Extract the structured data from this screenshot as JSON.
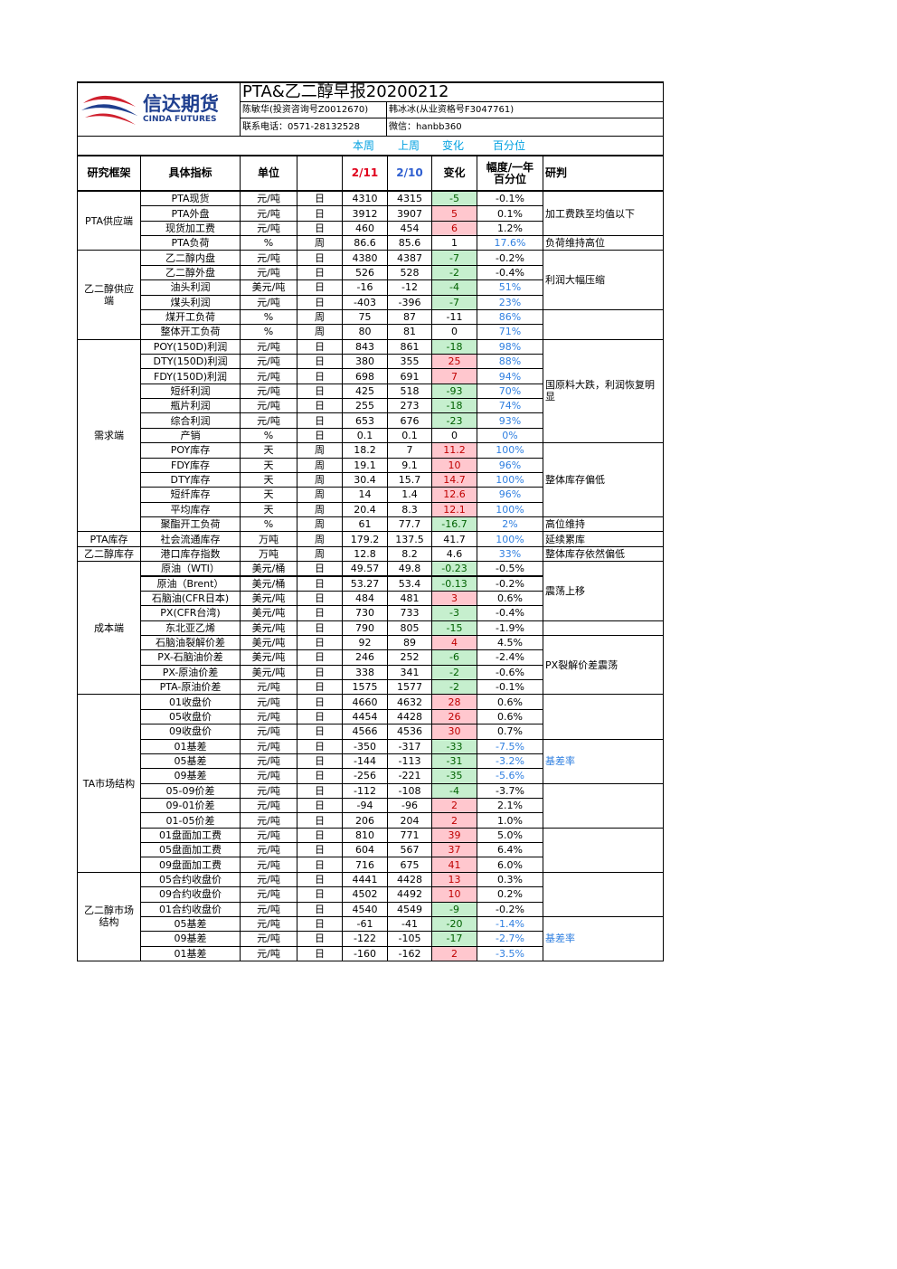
{
  "header": {
    "logo_cn": "信达期货",
    "logo_en": "CINDA FUTURES",
    "title": "PTA&乙二醇早报20200212",
    "author1": "陈敏华(投资咨询号Z0012670)",
    "author2": "韩冰冰(从业资格号F3047761)",
    "phone": "联系电话：0571-28132528",
    "wechat": "微信：hanbb360",
    "legend": [
      "本周",
      "上周",
      "变化",
      "百分位"
    ]
  },
  "columns": [
    "研究框架",
    "具体指标",
    "单位",
    "2/11",
    "2/10",
    "变化",
    "幅度/一年\n百分位",
    "研判"
  ],
  "groups": [
    {
      "name": "PTA供应端",
      "rows": [
        {
          "cells": [
            "PTA现货",
            "元/吨",
            "日",
            "4310",
            "4315",
            "-5",
            "-0.1%"
          ],
          "change_color": "green"
        },
        {
          "cells": [
            "PTA外盘",
            "元/吨",
            "日",
            "3912",
            "3907",
            "5",
            "0.1%"
          ],
          "change_color": "red"
        },
        {
          "cells": [
            "现货加工费",
            "元/吨",
            "日",
            "460",
            "454",
            "6",
            "1.2%"
          ],
          "change_color": "red"
        },
        {
          "cells": [
            "PTA负荷",
            "%",
            "周",
            "86.6",
            "85.6",
            "1",
            "17.6%"
          ],
          "pct_color": "blue"
        }
      ],
      "notes": [
        {
          "text": "加工费跌至均值以下",
          "span": 3
        },
        {
          "text": "负荷维持高位",
          "span": 1
        }
      ]
    },
    {
      "name": "乙二醇供应端",
      "rows": [
        {
          "cells": [
            "乙二醇内盘",
            "元/吨",
            "日",
            "4380",
            "4387",
            "-7",
            "-0.2%"
          ],
          "change_color": "green"
        },
        {
          "cells": [
            "乙二醇外盘",
            "元/吨",
            "日",
            "526",
            "528",
            "-2",
            "-0.4%"
          ],
          "change_color": "green"
        },
        {
          "cells": [
            "油头利润",
            "美元/吨",
            "日",
            "-16",
            "-12",
            "-4",
            "51%"
          ],
          "change_color": "green",
          "pct_color": "blue"
        },
        {
          "cells": [
            "煤头利润",
            "元/吨",
            "日",
            "-403",
            "-396",
            "-7",
            "23%"
          ],
          "change_color": "green",
          "pct_color": "blue"
        },
        {
          "cells": [
            "煤开工负荷",
            "%",
            "周",
            "75",
            "87",
            "-11",
            "86%"
          ],
          "pct_color": "blue"
        },
        {
          "cells": [
            "整体开工负荷",
            "%",
            "周",
            "80",
            "81",
            "0",
            "71%"
          ],
          "pct_color": "blue"
        }
      ],
      "notes": [
        {
          "text": "利润大幅压缩",
          "span": 4
        },
        {
          "span": 2
        }
      ]
    },
    {
      "name": "需求端",
      "rows": [
        {
          "cells": [
            "POY(150D)利润",
            "元/吨",
            "日",
            "843",
            "861",
            "-18",
            "98%"
          ],
          "change_color": "green",
          "pct_color": "blue"
        },
        {
          "cells": [
            "DTY(150D)利润",
            "元/吨",
            "日",
            "380",
            "355",
            "25",
            "88%"
          ],
          "change_color": "red",
          "pct_color": "blue"
        },
        {
          "cells": [
            "FDY(150D)利润",
            "元/吨",
            "日",
            "698",
            "691",
            "7",
            "94%"
          ],
          "change_color": "red",
          "pct_color": "blue"
        },
        {
          "cells": [
            "短纤利润",
            "元/吨",
            "日",
            "425",
            "518",
            "-93",
            "70%"
          ],
          "change_color": "green",
          "pct_color": "blue"
        },
        {
          "cells": [
            "瓶片利润",
            "元/吨",
            "日",
            "255",
            "273",
            "-18",
            "74%"
          ],
          "change_color": "green",
          "pct_color": "blue"
        },
        {
          "cells": [
            "综合利润",
            "元/吨",
            "日",
            "653",
            "676",
            "-23",
            "93%"
          ],
          "change_color": "green",
          "pct_color": "blue"
        },
        {
          "cells": [
            "产销",
            "%",
            "日",
            "0.1",
            "0.1",
            "0",
            "0%"
          ],
          "pct_color": "blue"
        },
        {
          "cells": [
            "POY库存",
            "天",
            "周",
            "18.2",
            "7",
            "11.2",
            "100%"
          ],
          "change_color": "red",
          "pct_color": "blue"
        },
        {
          "cells": [
            "FDY库存",
            "天",
            "周",
            "19.1",
            "9.1",
            "10",
            "96%"
          ],
          "change_color": "red",
          "pct_color": "blue"
        },
        {
          "cells": [
            "DTY库存",
            "天",
            "周",
            "30.4",
            "15.7",
            "14.7",
            "100%"
          ],
          "change_color": "red",
          "pct_color": "blue"
        },
        {
          "cells": [
            "短纤库存",
            "天",
            "周",
            "14",
            "1.4",
            "12.6",
            "96%"
          ],
          "change_color": "red",
          "pct_color": "blue"
        },
        {
          "cells": [
            "平均库存",
            "天",
            "周",
            "20.4",
            "8.3",
            "12.1",
            "100%"
          ],
          "change_color": "red",
          "pct_color": "blue"
        },
        {
          "cells": [
            "聚酯开工负荷",
            "%",
            "周",
            "61",
            "77.7",
            "-16.7",
            "2%"
          ],
          "change_color": "green",
          "pct_color": "blue"
        }
      ],
      "notes": [
        {
          "text": "国原料大跌，利润恢复明显",
          "span": 7
        },
        {
          "text": "整体库存偏低",
          "span": 5
        },
        {
          "text": "高位维持",
          "span": 1
        }
      ]
    },
    {
      "name": "PTA库存",
      "rows": [
        {
          "cells": [
            "社会流通库存",
            "万吨",
            "周",
            "179.2",
            "137.5",
            "41.7",
            "100%"
          ],
          "pct_color": "blue"
        }
      ],
      "notes": [
        {
          "text": "延续累库",
          "span": 1
        }
      ]
    },
    {
      "name": "乙二醇库存",
      "rows": [
        {
          "cells": [
            "港口库存指数",
            "万吨",
            "周",
            "12.8",
            "8.2",
            "4.6",
            "33%"
          ],
          "pct_color": "blue"
        }
      ],
      "notes": [
        {
          "text": "整体库存依然偏低",
          "span": 1
        }
      ]
    },
    {
      "name": "成本端",
      "rows": [
        {
          "cells": [
            "原油（WTI）",
            "美元/桶",
            "日",
            "49.57",
            "49.8",
            "-0.23",
            "-0.5%"
          ],
          "change_color": "green"
        },
        {
          "cells": [
            "原油（Brent）",
            "美元/桶",
            "日",
            "53.27",
            "53.4",
            "-0.13",
            "-0.2%"
          ],
          "change_color": "green"
        },
        {
          "cells": [
            "石脑油(CFR日本)",
            "美元/吨",
            "日",
            "484",
            "481",
            "3",
            "0.6%"
          ],
          "change_color": "red"
        },
        {
          "cells": [
            "PX(CFR台湾)",
            "美元/吨",
            "日",
            "730",
            "733",
            "-3",
            "-0.4%"
          ],
          "change_color": "green"
        },
        {
          "cells": [
            "东北亚乙烯",
            "美元/吨",
            "日",
            "790",
            "805",
            "-15",
            "-1.9%"
          ],
          "change_color": "green"
        },
        {
          "cells": [
            "石脑油裂解价差",
            "美元/吨",
            "日",
            "92",
            "89",
            "4",
            "4.5%"
          ],
          "change_color": "red"
        },
        {
          "cells": [
            "PX-石脑油价差",
            "美元/吨",
            "日",
            "246",
            "252",
            "-6",
            "-2.4%"
          ],
          "change_color": "green"
        },
        {
          "cells": [
            "PX-原油价差",
            "美元/吨",
            "日",
            "338",
            "341",
            "-2",
            "-0.6%"
          ],
          "change_color": "green"
        },
        {
          "cells": [
            "PTA-原油价差",
            "元/吨",
            "日",
            "1575",
            "1577",
            "-2",
            "-0.1%"
          ],
          "change_color": "green"
        }
      ],
      "notes": [
        {
          "text": "震荡上移",
          "span": 4
        },
        {
          "span": 1
        },
        {
          "text": "PX裂解价差震荡",
          "span": 4
        }
      ]
    },
    {
      "name": "TA市场结构",
      "rows": [
        {
          "cells": [
            "01收盘价",
            "元/吨",
            "日",
            "4660",
            "4632",
            "28",
            "0.6%"
          ],
          "change_color": "red"
        },
        {
          "cells": [
            "05收盘价",
            "元/吨",
            "日",
            "4454",
            "4428",
            "26",
            "0.6%"
          ],
          "change_color": "red"
        },
        {
          "cells": [
            "09收盘价",
            "元/吨",
            "日",
            "4566",
            "4536",
            "30",
            "0.7%"
          ],
          "change_color": "red"
        },
        {
          "cells": [
            "01基差",
            "元/吨",
            "日",
            "-350",
            "-317",
            "-33",
            "-7.5%"
          ],
          "change_color": "green",
          "pct_color": "blue"
        },
        {
          "cells": [
            "05基差",
            "元/吨",
            "日",
            "-144",
            "-113",
            "-31",
            "-3.2%"
          ],
          "change_color": "green",
          "pct_color": "blue"
        },
        {
          "cells": [
            "09基差",
            "元/吨",
            "日",
            "-256",
            "-221",
            "-35",
            "-5.6%"
          ],
          "change_color": "green",
          "pct_color": "blue"
        },
        {
          "cells": [
            "05-09价差",
            "元/吨",
            "日",
            "-112",
            "-108",
            "-4",
            "-3.7%"
          ],
          "change_color": "green"
        },
        {
          "cells": [
            "09-01价差",
            "元/吨",
            "日",
            "-94",
            "-96",
            "2",
            "2.1%"
          ],
          "change_color": "red"
        },
        {
          "cells": [
            "01-05价差",
            "元/吨",
            "日",
            "206",
            "204",
            "2",
            "1.0%"
          ],
          "change_color": "red"
        },
        {
          "cells": [
            "01盘面加工费",
            "元/吨",
            "日",
            "810",
            "771",
            "39",
            "5.0%"
          ],
          "change_color": "red"
        },
        {
          "cells": [
            "05盘面加工费",
            "元/吨",
            "日",
            "604",
            "567",
            "37",
            "6.4%"
          ],
          "change_color": "red"
        },
        {
          "cells": [
            "09盘面加工费",
            "元/吨",
            "日",
            "716",
            "675",
            "41",
            "6.0%"
          ],
          "change_color": "red"
        }
      ],
      "notes": [
        {
          "span": 3
        },
        {
          "text": "基差率",
          "span": 3,
          "color": "blue"
        },
        {
          "span": 3
        },
        {
          "span": 3
        }
      ]
    },
    {
      "name": "乙二醇市场结构",
      "rows": [
        {
          "cells": [
            "05合约收盘价",
            "元/吨",
            "日",
            "4441",
            "4428",
            "13",
            "0.3%"
          ],
          "change_color": "red"
        },
        {
          "cells": [
            "09合约收盘价",
            "元/吨",
            "日",
            "4502",
            "4492",
            "10",
            "0.2%"
          ],
          "change_color": "red"
        },
        {
          "cells": [
            "01合约收盘价",
            "元/吨",
            "日",
            "4540",
            "4549",
            "-9",
            "-0.2%"
          ],
          "change_color": "green"
        },
        {
          "cells": [
            "05基差",
            "元/吨",
            "日",
            "-61",
            "-41",
            "-20",
            "-1.4%"
          ],
          "change_color": "green",
          "pct_color": "blue"
        },
        {
          "cells": [
            "09基差",
            "元/吨",
            "日",
            "-122",
            "-105",
            "-17",
            "-2.7%"
          ],
          "change_color": "green",
          "pct_color": "blue"
        },
        {
          "cells": [
            "01基差",
            "元/吨",
            "日",
            "-160",
            "-162",
            "2",
            "-3.5%"
          ],
          "change_color": "red",
          "pct_color": "blue"
        }
      ],
      "notes": [
        {
          "span": 3
        },
        {
          "text": "基差率",
          "span": 3,
          "color": "blue"
        }
      ]
    }
  ]
}
